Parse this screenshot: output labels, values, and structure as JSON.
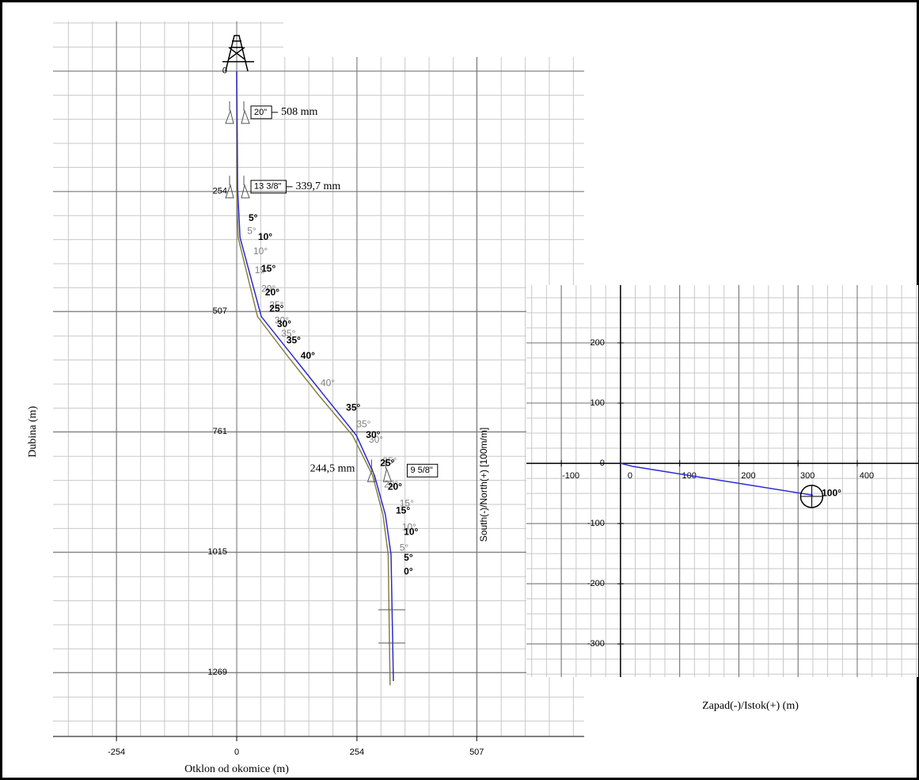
{
  "chart_data": [
    {
      "type": "line",
      "y_label": "Dubina (m)",
      "x_label": "Otklon od okomice (m)",
      "xlim": [
        -388,
        734
      ],
      "ylim": [
        1404,
        -105
      ],
      "xticks": [
        -254,
        0,
        254,
        507
      ],
      "yticks": [
        0,
        254,
        507,
        761,
        1015,
        1269
      ],
      "grid": true,
      "series": [
        {
          "color": "#8a8040",
          "x": [
            0,
            0,
            3,
            44,
            108,
            175,
            245,
            287,
            309,
            320,
            324
          ],
          "values": [
            0,
            250,
            351,
            518,
            602,
            686,
            769,
            853,
            936,
            1020,
            1296
          ]
        },
        {
          "color": "#2b2bd6",
          "x": [
            0,
            2,
            7,
            52,
            119,
            186,
            253,
            291,
            314,
            326,
            331
          ],
          "values": [
            0,
            250,
            351,
            518,
            602,
            686,
            769,
            853,
            936,
            1020,
            1287
          ]
        }
      ],
      "casings": [
        {
          "label": "20\"",
          "size": "508 mm",
          "depth": 97
        },
        {
          "label": "13 3/8\"",
          "size": "339,7 mm",
          "depth": 254
        },
        {
          "label": "9 5/8\"",
          "size": "244,5 mm",
          "depth": 853
        }
      ],
      "angle_labels_actual": [
        {
          "text": "5°",
          "x": 25,
          "y": 311
        },
        {
          "text": "10°",
          "x": 45,
          "y": 351
        },
        {
          "text": "15°",
          "x": 52,
          "y": 418
        },
        {
          "text": "20°",
          "x": 60,
          "y": 468
        },
        {
          "text": "25°",
          "x": 69,
          "y": 502
        },
        {
          "text": "30°",
          "x": 85,
          "y": 535
        },
        {
          "text": "35°",
          "x": 105,
          "y": 569
        },
        {
          "text": "40°",
          "x": 135,
          "y": 602
        },
        {
          "text": "35°",
          "x": 231,
          "y": 711
        },
        {
          "text": "30°",
          "x": 273,
          "y": 769
        },
        {
          "text": "25°",
          "x": 303,
          "y": 828
        },
        {
          "text": "20°",
          "x": 319,
          "y": 878
        },
        {
          "text": "15°",
          "x": 336,
          "y": 928
        },
        {
          "text": "10°",
          "x": 353,
          "y": 973
        },
        {
          "text": "5°",
          "x": 353,
          "y": 1028
        },
        {
          "text": "0°",
          "x": 353,
          "y": 1057
        }
      ],
      "angle_labels_plan": [
        {
          "text": "5°",
          "x": 22,
          "y": 338
        },
        {
          "text": "10°",
          "x": 35,
          "y": 381
        },
        {
          "text": "15°",
          "x": 38,
          "y": 421
        },
        {
          "text": "20°",
          "x": 52,
          "y": 460
        },
        {
          "text": "25°",
          "x": 69,
          "y": 495
        },
        {
          "text": "30°",
          "x": 80,
          "y": 527
        },
        {
          "text": "35°",
          "x": 94,
          "y": 555
        },
        {
          "text": "40°",
          "x": 177,
          "y": 659
        },
        {
          "text": "35°",
          "x": 253,
          "y": 746
        },
        {
          "text": "30°",
          "x": 279,
          "y": 779
        },
        {
          "text": "25°",
          "x": 308,
          "y": 824
        },
        {
          "text": "20°",
          "x": 311,
          "y": 873
        },
        {
          "text": "15°",
          "x": 344,
          "y": 913
        },
        {
          "text": "10°",
          "x": 349,
          "y": 963
        },
        {
          "text": "5°",
          "x": 344,
          "y": 1007
        }
      ]
    },
    {
      "type": "line",
      "x_label": "Zapad(-)/Istok(+) (m)",
      "y_label": "South(-)/North(+) [100m/m]",
      "xlim": [
        -159,
        503
      ],
      "ylim": [
        -355,
        296
      ],
      "xticks": [
        -100,
        0,
        100,
        200,
        300,
        400
      ],
      "yticks": [
        -300,
        -200,
        -100,
        0,
        100,
        200
      ],
      "grid": true,
      "series": [
        {
          "color": "#2b2bd6",
          "x": [
            0,
            20,
            325
          ],
          "values": [
            0,
            -5,
            -53
          ]
        }
      ],
      "target": {
        "x": 323,
        "y": -55
      },
      "angle_labels_actual": [
        {
          "text": "100°",
          "x": 340,
          "y": -50
        }
      ]
    }
  ]
}
